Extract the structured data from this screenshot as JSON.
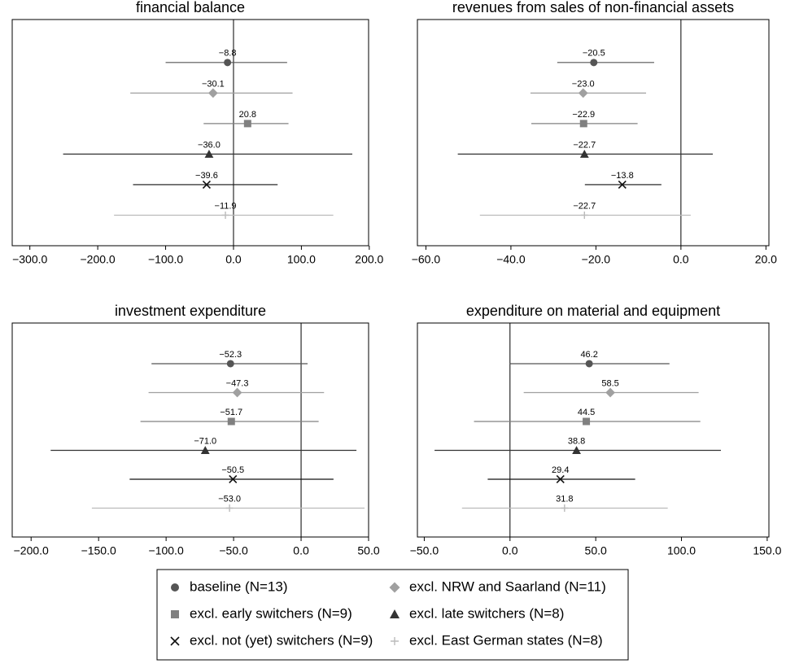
{
  "chart_data": [
    {
      "type": "errorbar",
      "title": "financial balance",
      "xlim": [
        -326,
        199
      ],
      "xticks": [
        {
          "value": -300,
          "label": "−300.0"
        },
        {
          "value": -200,
          "label": "−200.0"
        },
        {
          "value": -100,
          "label": "−100.0"
        },
        {
          "value": 0,
          "label": "0.0"
        },
        {
          "value": 100,
          "label": "100.0"
        },
        {
          "value": 200,
          "label": "200.0"
        }
      ],
      "series": [
        {
          "name": "baseline (N=13)",
          "color": "#555555",
          "marker": "circle",
          "values": [
            -8.8
          ],
          "value_labels": [
            "−8.8"
          ],
          "lower": [
            -100
          ],
          "upper": [
            79
          ]
        },
        {
          "name": "excl. NRW and Saarland (N=11)",
          "color": "#a0a0a0",
          "marker": "diamond",
          "values": [
            -30.1
          ],
          "value_labels": [
            "−30.1"
          ],
          "lower": [
            -152
          ],
          "upper": [
            87
          ]
        },
        {
          "name": "excl. early switchers (N=9)",
          "color": "#808080",
          "marker": "square",
          "values": [
            20.8
          ],
          "lower": [
            -44
          ],
          "upper": [
            81
          ]
        },
        {
          "name": "excl. late switchers (N=8)",
          "color": "#333333",
          "marker": "triangle",
          "values": [
            -36
          ],
          "value_labels": [
            "−36.0"
          ],
          "lower": [
            -251
          ],
          "upper": [
            175
          ]
        },
        {
          "name": "excl. not (yet) switchers (N=9)",
          "color": "#111111",
          "marker": "x",
          "values": [
            -39.6
          ],
          "value_labels": [
            "−39.6"
          ],
          "lower": [
            -148
          ],
          "upper": [
            65
          ]
        },
        {
          "name": "excl. East German states (N=8)",
          "color": "#bbbbbb",
          "marker": "plus",
          "values": [
            -11.9
          ],
          "value_labels": [
            "−11.9"
          ],
          "lower": [
            -176
          ],
          "upper": [
            147
          ]
        }
      ]
    },
    {
      "type": "errorbar",
      "title": "revenues from sales of non-financial assets",
      "xlim": [
        -62,
        20.7
      ],
      "xticks": [
        {
          "value": -60,
          "label": "−60.0"
        },
        {
          "value": -40,
          "label": "−40.0"
        },
        {
          "value": -20,
          "label": "−20.0"
        },
        {
          "value": 0,
          "label": "0.0"
        },
        {
          "value": 20,
          "label": "20.0"
        }
      ],
      "series": [
        {
          "name": "baseline (N=13)",
          "color": "#555555",
          "marker": "circle",
          "values": [
            -20.5
          ],
          "value_labels": [
            "−20.5"
          ],
          "lower": [
            -29.1
          ],
          "upper": [
            -6.3
          ]
        },
        {
          "name": "excl. NRW and Saarland (N=11)",
          "color": "#a0a0a0",
          "marker": "diamond",
          "values": [
            -23
          ],
          "value_labels": [
            "−23.0"
          ],
          "lower": [
            -35.4
          ],
          "upper": [
            -8.2
          ]
        },
        {
          "name": "excl. early switchers (N=9)",
          "color": "#808080",
          "marker": "square",
          "values": [
            -22.9
          ],
          "value_labels": [
            "−22.9"
          ],
          "lower": [
            -35.2
          ],
          "upper": [
            -10.2
          ]
        },
        {
          "name": "excl. late switchers (N=8)",
          "color": "#333333",
          "marker": "triangle",
          "values": [
            -22.7
          ],
          "value_labels": [
            "−22.7"
          ],
          "lower": [
            -52.5
          ],
          "upper": [
            7.5
          ]
        },
        {
          "name": "excl. not (yet) switchers (N=9)",
          "color": "#111111",
          "marker": "x",
          "values": [
            -13.8
          ],
          "value_labels": [
            "−13.8"
          ],
          "lower": [
            -22.6
          ],
          "upper": [
            -4.6
          ]
        },
        {
          "name": "excl. East German states (N=8)",
          "color": "#bbbbbb",
          "marker": "plus",
          "values": [
            -22.7
          ],
          "value_labels": [
            "−22.7"
          ],
          "lower": [
            -47.3
          ],
          "upper": [
            2.3
          ]
        }
      ]
    },
    {
      "type": "errorbar",
      "title": "investment expenditure",
      "xlim": [
        -214,
        50
      ],
      "xticks": [
        {
          "value": -200,
          "label": "−200.0"
        },
        {
          "value": -150,
          "label": "−150.0"
        },
        {
          "value": -100,
          "label": "−100.0"
        },
        {
          "value": -50,
          "label": "−50.0"
        },
        {
          "value": 0,
          "label": "0.0"
        },
        {
          "value": 50,
          "label": "50.0"
        }
      ],
      "series": [
        {
          "name": "baseline (N=13)",
          "color": "#555555",
          "marker": "circle",
          "values": [
            -52.3
          ],
          "value_labels": [
            "−52.3"
          ],
          "lower": [
            -110.8
          ],
          "upper": [
            4.8
          ]
        },
        {
          "name": "excl. NRW and Saarland (N=11)",
          "color": "#a0a0a0",
          "marker": "diamond",
          "values": [
            -47.3
          ],
          "value_labels": [
            "−47.3"
          ],
          "lower": [
            -113
          ],
          "upper": [
            17
          ]
        },
        {
          "name": "excl. early switchers (N=9)",
          "color": "#808080",
          "marker": "square",
          "values": [
            -51.7
          ],
          "value_labels": [
            "−51.7"
          ],
          "lower": [
            -119
          ],
          "upper": [
            13
          ]
        },
        {
          "name": "excl. late switchers (N=8)",
          "color": "#333333",
          "marker": "triangle",
          "values": [
            -71
          ],
          "value_labels": [
            "−71.0"
          ],
          "lower": [
            -185.5
          ],
          "upper": [
            41
          ]
        },
        {
          "name": "excl. not (yet) switchers (N=9)",
          "color": "#111111",
          "marker": "x",
          "values": [
            -50.5
          ],
          "value_labels": [
            "−50.5"
          ],
          "lower": [
            -127
          ],
          "upper": [
            24
          ]
        },
        {
          "name": "excl. East German states (N=8)",
          "color": "#bbbbbb",
          "marker": "plus",
          "values": [
            -53
          ],
          "value_labels": [
            "−53.0"
          ],
          "lower": [
            -155
          ],
          "upper": [
            47
          ]
        }
      ]
    },
    {
      "type": "errorbar",
      "title": "expenditure on material and equipment",
      "xlim": [
        -54,
        151
      ],
      "xticks": [
        {
          "value": -50,
          "label": "−50.0"
        },
        {
          "value": 0,
          "label": "0.0"
        },
        {
          "value": 50,
          "label": "50.0"
        },
        {
          "value": 100,
          "label": "100.0"
        },
        {
          "value": 150,
          "label": "150.0"
        }
      ],
      "series": [
        {
          "name": "baseline (N=13)",
          "color": "#555555",
          "marker": "circle",
          "values": [
            46.2
          ],
          "lower": [
            0
          ],
          "upper": [
            93
          ]
        },
        {
          "name": "excl. NRW and Saarland (N=11)",
          "color": "#a0a0a0",
          "marker": "diamond",
          "values": [
            58.5
          ],
          "lower": [
            8
          ],
          "upper": [
            110
          ]
        },
        {
          "name": "excl. early switchers (N=9)",
          "color": "#808080",
          "marker": "square",
          "values": [
            44.5
          ],
          "lower": [
            -21
          ],
          "upper": [
            111
          ]
        },
        {
          "name": "excl. late switchers (N=8)",
          "color": "#333333",
          "marker": "triangle",
          "values": [
            38.8
          ],
          "lower": [
            -44
          ],
          "upper": [
            123
          ]
        },
        {
          "name": "excl. not (yet) switchers (N=9)",
          "color": "#111111",
          "marker": "x",
          "values": [
            29.4
          ],
          "lower": [
            -13
          ],
          "upper": [
            73
          ]
        },
        {
          "name": "excl. East German states (N=8)",
          "color": "#bbbbbb",
          "marker": "plus",
          "values": [
            31.8
          ],
          "lower": [
            -28
          ],
          "upper": [
            92
          ]
        }
      ]
    }
  ]
}
